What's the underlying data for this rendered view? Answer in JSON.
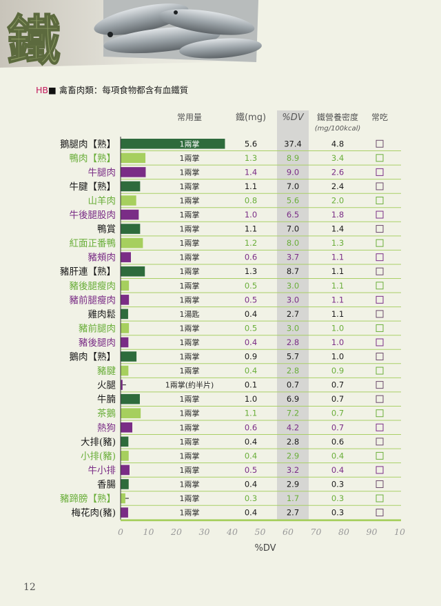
{
  "page": {
    "big_char": "鐵",
    "subtitle_prefix": "HB",
    "subtitle_marker": "■",
    "subtitle_category": " 禽畜肉類：",
    "subtitle_text": "每項食物都含有血鐵質",
    "page_number": "12"
  },
  "colors": {
    "dark_green": "#2e6b3c",
    "light_green": "#a6cf5e",
    "purple": "#7a2d86",
    "label_dark": "#1a1a1a",
    "label_green": "#6aae3a",
    "label_purple": "#7a2d86",
    "header": "#555555",
    "dv_band": "#cccccc",
    "row_line": "#a9cf66",
    "checkbox": "#6a4a6a",
    "axis_ticks": "#999999"
  },
  "chart_data": {
    "type": "bar",
    "orientation": "horizontal",
    "xlabel": "%DV",
    "xlim": [
      0,
      100
    ],
    "x_ticks": [
      "0",
      "10",
      "20",
      "30",
      "40",
      "50",
      "60",
      "70",
      "80",
      "90",
      "10"
    ],
    "columns": {
      "portion": "常用量",
      "iron": "鐵(mg)",
      "dv": "%DV",
      "density": "鐵營養密度",
      "density_unit": "(mg/100kcal)",
      "frequent": "常吃"
    },
    "rows": [
      {
        "name": "鵝腿肉【熟】",
        "portion": "1兩掌",
        "iron": "5.6",
        "dv": 37.4,
        "dv_text": "37.4",
        "density": "4.8",
        "color": "dark",
        "label": "dark"
      },
      {
        "name": "鴨肉【熟】",
        "portion": "1兩掌",
        "iron": "1.3",
        "dv": 8.9,
        "dv_text": "8.9",
        "density": "3.4",
        "color": "light",
        "label": "green"
      },
      {
        "name": "牛腿肉",
        "portion": "1兩掌",
        "iron": "1.4",
        "dv": 9.0,
        "dv_text": "9.0",
        "density": "2.6",
        "color": "purple",
        "label": "purple"
      },
      {
        "name": "牛腱【熟】",
        "portion": "1兩掌",
        "iron": "1.1",
        "dv": 7.0,
        "dv_text": "7.0",
        "density": "2.4",
        "color": "dark",
        "label": "dark"
      },
      {
        "name": "山羊肉",
        "portion": "1兩掌",
        "iron": "0.8",
        "dv": 5.6,
        "dv_text": "5.6",
        "density": "2.0",
        "color": "light",
        "label": "green"
      },
      {
        "name": "牛後腿股肉",
        "portion": "1兩掌",
        "iron": "1.0",
        "dv": 6.5,
        "dv_text": "6.5",
        "density": "1.8",
        "color": "purple",
        "label": "purple"
      },
      {
        "name": "鴨賞",
        "portion": "1兩掌",
        "iron": "1.1",
        "dv": 7.0,
        "dv_text": "7.0",
        "density": "1.4",
        "color": "dark",
        "label": "dark"
      },
      {
        "name": "紅面正番鴨",
        "portion": "1兩掌",
        "iron": "1.2",
        "dv": 8.0,
        "dv_text": "8.0",
        "density": "1.3",
        "color": "light",
        "label": "green"
      },
      {
        "name": "豬頰肉",
        "portion": "1兩掌",
        "iron": "0.6",
        "dv": 3.7,
        "dv_text": "3.7",
        "density": "1.1",
        "color": "purple",
        "label": "purple"
      },
      {
        "name": "豬肝連【熟】",
        "portion": "1兩掌",
        "iron": "1.3",
        "dv": 8.7,
        "dv_text": "8.7",
        "density": "1.1",
        "color": "dark",
        "label": "dark"
      },
      {
        "name": "豬後腿瘦肉",
        "portion": "1兩掌",
        "iron": "0.5",
        "dv": 3.0,
        "dv_text": "3.0",
        "density": "1.1",
        "color": "light",
        "label": "green"
      },
      {
        "name": "豬前腿瘦肉",
        "portion": "1兩掌",
        "iron": "0.5",
        "dv": 3.0,
        "dv_text": "3.0",
        "density": "1.1",
        "color": "purple",
        "label": "purple"
      },
      {
        "name": "雞肉鬆",
        "portion": "1湯匙",
        "iron": "0.4",
        "dv": 2.7,
        "dv_text": "2.7",
        "density": "1.1",
        "color": "dark",
        "label": "dark"
      },
      {
        "name": "豬前腿肉",
        "portion": "1兩掌",
        "iron": "0.5",
        "dv": 3.0,
        "dv_text": "3.0",
        "density": "1.0",
        "color": "light",
        "label": "green"
      },
      {
        "name": "豬後腿肉",
        "portion": "1兩掌",
        "iron": "0.4",
        "dv": 2.8,
        "dv_text": "2.8",
        "density": "1.0",
        "color": "purple",
        "label": "purple"
      },
      {
        "name": "鵝肉【熟】",
        "portion": "1兩掌",
        "iron": "0.9",
        "dv": 5.7,
        "dv_text": "5.7",
        "density": "1.0",
        "color": "dark",
        "label": "dark"
      },
      {
        "name": "豬腱",
        "portion": "1兩掌",
        "iron": "0.4",
        "dv": 2.8,
        "dv_text": "2.8",
        "density": "0.9",
        "color": "light",
        "label": "green"
      },
      {
        "name": "火腿",
        "portion": "1兩掌(約半片)",
        "iron": "0.1",
        "dv": 0.7,
        "dv_text": "0.7",
        "density": "0.7",
        "color": "purple",
        "label": "dark"
      },
      {
        "name": "牛腩",
        "portion": "1兩掌",
        "iron": "1.0",
        "dv": 6.9,
        "dv_text": "6.9",
        "density": "0.7",
        "color": "dark",
        "label": "dark"
      },
      {
        "name": "茶鵝",
        "portion": "1兩掌",
        "iron": "1.1",
        "dv": 7.2,
        "dv_text": "7.2",
        "density": "0.7",
        "color": "light",
        "label": "green"
      },
      {
        "name": "熱狗",
        "portion": "1兩掌",
        "iron": "0.6",
        "dv": 4.2,
        "dv_text": "4.2",
        "density": "0.7",
        "color": "purple",
        "label": "purple"
      },
      {
        "name": "大排(豬)",
        "portion": "1兩掌",
        "iron": "0.4",
        "dv": 2.8,
        "dv_text": "2.8",
        "density": "0.6",
        "color": "dark",
        "label": "dark"
      },
      {
        "name": "小排(豬)",
        "portion": "1兩掌",
        "iron": "0.4",
        "dv": 2.9,
        "dv_text": "2.9",
        "density": "0.4",
        "color": "light",
        "label": "green"
      },
      {
        "name": "牛小排",
        "portion": "1兩掌",
        "iron": "0.5",
        "dv": 3.2,
        "dv_text": "3.2",
        "density": "0.4",
        "color": "purple",
        "label": "purple"
      },
      {
        "name": "香腸",
        "portion": "1兩掌",
        "iron": "0.4",
        "dv": 2.9,
        "dv_text": "2.9",
        "density": "0.3",
        "color": "dark",
        "label": "dark"
      },
      {
        "name": "豬蹄膀【熟】",
        "portion": "1兩掌",
        "iron": "0.3",
        "dv": 1.7,
        "dv_text": "1.7",
        "density": "0.3",
        "color": "light",
        "label": "green"
      },
      {
        "name": "梅花肉(豬)",
        "portion": "1兩掌",
        "iron": "0.4",
        "dv": 2.7,
        "dv_text": "2.7",
        "density": "0.3",
        "color": "purple",
        "label": "dark"
      }
    ]
  }
}
